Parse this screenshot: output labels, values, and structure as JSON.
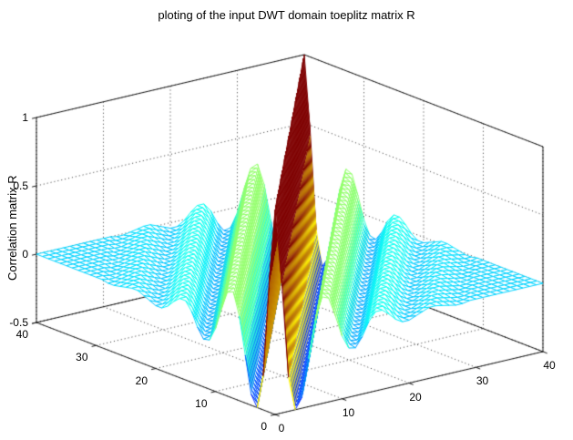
{
  "chart_data": {
    "type": "mesh3d",
    "plot_function": "mesh",
    "title": "ploting of the input DWT domain toeplitz matrix R",
    "zlabel": "Correlation matrix R",
    "matrix_structure": "symmetric toeplitz: R[i][j] = toeplitz_first_row[abs(i-j)]",
    "size": 41,
    "toeplitz_first_row": [
      1,
      0.45,
      -0.25,
      -0.5,
      -0.42,
      -0.15,
      0.12,
      0.28,
      0.26,
      0.12,
      -0.04,
      -0.14,
      -0.15,
      -0.08,
      0.02,
      0.08,
      0.08,
      0.04,
      -0.01,
      -0.04,
      -0.04,
      -0.02,
      0,
      0.02,
      0.02,
      0.01,
      0,
      -0.01,
      -0.01,
      0,
      0,
      0,
      0,
      0,
      0,
      0,
      0,
      0,
      0,
      0,
      0
    ],
    "xlim": [
      0,
      40
    ],
    "ylim": [
      0,
      40
    ],
    "zlim": [
      -0.5,
      1
    ],
    "x_ticks": [
      0,
      10,
      20,
      30,
      40
    ],
    "y_ticks": [
      0,
      10,
      20,
      30,
      40
    ],
    "z_ticks": [
      -0.5,
      0,
      0.5,
      1
    ],
    "grid": "on",
    "colormap": "jet",
    "view": {
      "azimuth": -37.5,
      "elevation": 30
    },
    "style": "wireframe mesh, colored edges (jet by height), hidden-surface white faces, dotted black axis grid on floor and back walls",
    "background": "#ffffff"
  }
}
